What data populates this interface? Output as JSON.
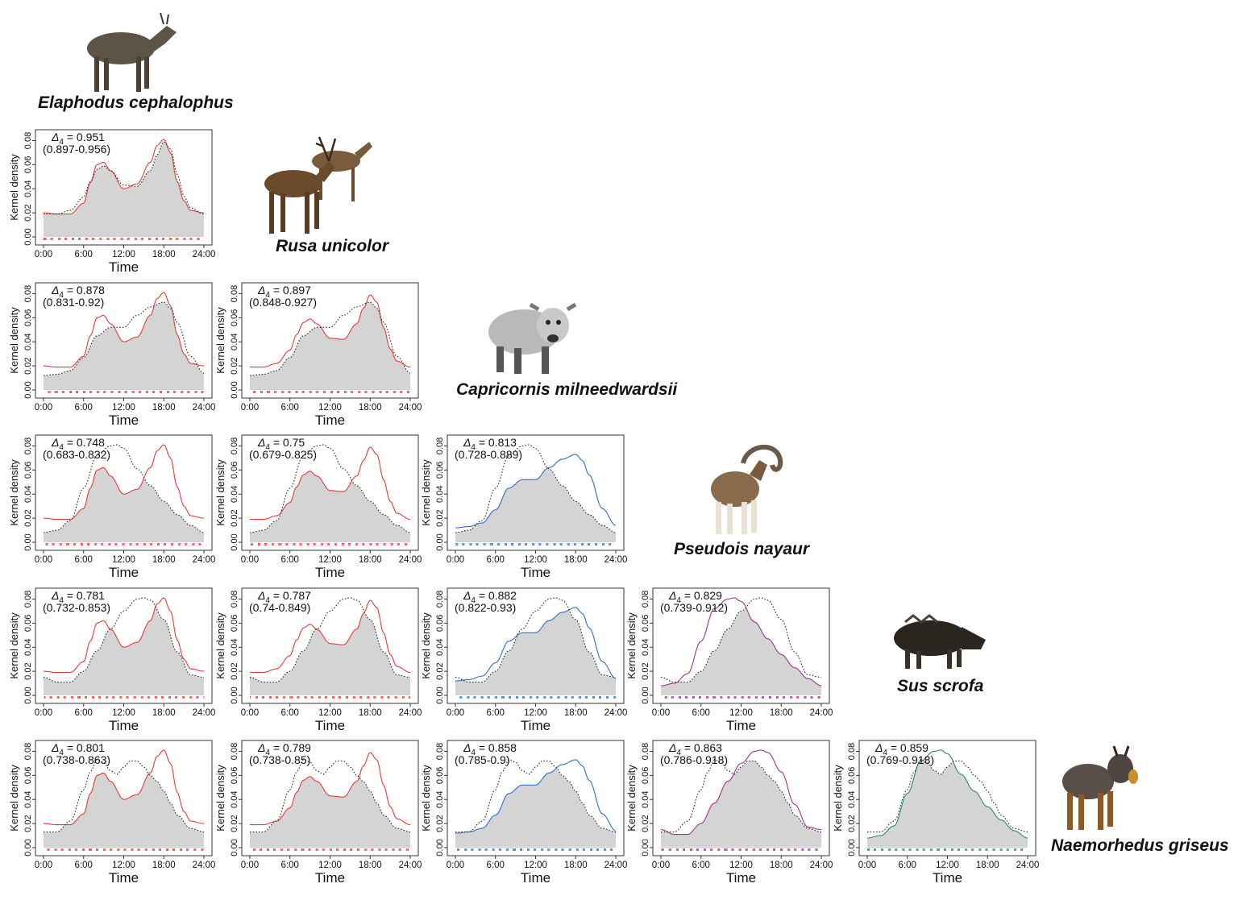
{
  "species": [
    "Elaphodus cephalophus",
    "Rusa unicolor",
    "Capricornis milneedwardsii",
    "Pseudois nayaur",
    "Sus scrofa",
    "Naemorhedus griseus"
  ],
  "species_colors": [
    "#e63a3a",
    "#2f6fc4",
    "#a0338f",
    "#2a8a5a"
  ],
  "chart_data": {
    "type": "area",
    "xlabel": "Time",
    "ylabel": "Kernel density",
    "x_ticks": [
      "0:00",
      "6:00",
      "12:00",
      "18:00",
      "24:00"
    ],
    "y_ticks": [
      "0.00",
      "0.02",
      "0.04",
      "0.06",
      "0.08"
    ],
    "xlim": [
      0,
      24
    ],
    "ylim": [
      0,
      0.085
    ],
    "overlap_symbol": "Δ",
    "overlap_subscript": "4",
    "panels": [
      {
        "pair": [
          "Rusa unicolor",
          "Elaphodus cephalophus"
        ],
        "delta": "0.951",
        "ci": "(0.897-0.956)"
      },
      {
        "pair": [
          "Capricornis milneedwardsii",
          "Elaphodus cephalophus"
        ],
        "delta": "0.878",
        "ci": "(0.831-0.92)"
      },
      {
        "pair": [
          "Capricornis milneedwardsii",
          "Rusa unicolor"
        ],
        "delta": "0.897",
        "ci": "(0.848-0.927)"
      },
      {
        "pair": [
          "Pseudois nayaur",
          "Elaphodus cephalophus"
        ],
        "delta": "0.748",
        "ci": "(0.683-0.832)"
      },
      {
        "pair": [
          "Pseudois nayaur",
          "Rusa unicolor"
        ],
        "delta": "0.75",
        "ci": "(0.679-0.825)"
      },
      {
        "pair": [
          "Pseudois nayaur",
          "Capricornis milneedwardsii"
        ],
        "delta": "0.813",
        "ci": "(0.728-0.889)"
      },
      {
        "pair": [
          "Sus scrofa",
          "Elaphodus cephalophus"
        ],
        "delta": "0.781",
        "ci": "(0.732-0.853)"
      },
      {
        "pair": [
          "Sus scrofa",
          "Rusa unicolor"
        ],
        "delta": "0.787",
        "ci": "(0.74-0.849)"
      },
      {
        "pair": [
          "Sus scrofa",
          "Capricornis milneedwardsii"
        ],
        "delta": "0.882",
        "ci": "(0.822-0.93)"
      },
      {
        "pair": [
          "Sus scrofa",
          "Pseudois nayaur"
        ],
        "delta": "0.829",
        "ci": "(0.739-0.912)"
      },
      {
        "pair": [
          "Naemorhedus griseus",
          "Elaphodus cephalophus"
        ],
        "delta": "0.801",
        "ci": "(0.738-0.863)"
      },
      {
        "pair": [
          "Naemorhedus griseus",
          "Rusa unicolor"
        ],
        "delta": "0.789",
        "ci": "(0.738-0.85)"
      },
      {
        "pair": [
          "Naemorhedus griseus",
          "Capricornis milneedwardsii"
        ],
        "delta": "0.858",
        "ci": "(0.785-0.9)"
      },
      {
        "pair": [
          "Naemorhedus griseus",
          "Sus scrofa"
        ],
        "delta": "0.863",
        "ci": "(0.786-0.918)"
      },
      {
        "pair": [
          "Naemorhedus griseus",
          "Pseudois nayaur"
        ],
        "delta": "0.859",
        "ci": "(0.769-0.918)"
      }
    ],
    "activity_curves": {
      "Elaphodus cephalophus": {
        "x": [
          0,
          2,
          4,
          6,
          7,
          8,
          9,
          10,
          12,
          14,
          16,
          17,
          18,
          19,
          20,
          21,
          22,
          24
        ],
        "y": [
          0.02,
          0.019,
          0.019,
          0.028,
          0.045,
          0.06,
          0.062,
          0.055,
          0.04,
          0.044,
          0.062,
          0.076,
          0.081,
          0.07,
          0.046,
          0.03,
          0.022,
          0.02
        ]
      },
      "Rusa unicolor": {
        "x": [
          0,
          2,
          4,
          6,
          7,
          8,
          9,
          10,
          12,
          14,
          16,
          17,
          18,
          19,
          20,
          21,
          22,
          24
        ],
        "y": [
          0.019,
          0.019,
          0.022,
          0.033,
          0.046,
          0.056,
          0.059,
          0.055,
          0.043,
          0.042,
          0.055,
          0.068,
          0.079,
          0.073,
          0.052,
          0.034,
          0.024,
          0.019
        ]
      },
      "Capricornis milneedwardsii": {
        "x": [
          0,
          2,
          4,
          6,
          8,
          10,
          12,
          14,
          16,
          18,
          19,
          20,
          22,
          24
        ],
        "y": [
          0.012,
          0.013,
          0.016,
          0.027,
          0.045,
          0.052,
          0.052,
          0.062,
          0.069,
          0.073,
          0.068,
          0.056,
          0.028,
          0.014
        ]
      },
      "Pseudois nayaur": {
        "x": [
          0,
          2,
          4,
          6,
          8,
          10,
          11,
          12,
          14,
          16,
          18,
          20,
          22,
          24
        ],
        "y": [
          0.008,
          0.01,
          0.018,
          0.045,
          0.072,
          0.08,
          0.081,
          0.078,
          0.061,
          0.047,
          0.034,
          0.023,
          0.014,
          0.008
        ]
      },
      "Sus scrofa": {
        "x": [
          0,
          2,
          4,
          6,
          8,
          10,
          12,
          14,
          15,
          16,
          18,
          20,
          22,
          24
        ],
        "y": [
          0.015,
          0.011,
          0.011,
          0.02,
          0.037,
          0.055,
          0.07,
          0.08,
          0.081,
          0.079,
          0.063,
          0.036,
          0.017,
          0.015
        ]
      },
      "Naemorhedus griseus": {
        "x": [
          0,
          2,
          4,
          6,
          7,
          8,
          9,
          10,
          11,
          12,
          13,
          14,
          15,
          16,
          17,
          18,
          19,
          20,
          22,
          24
        ],
        "y": [
          0.013,
          0.013,
          0.022,
          0.048,
          0.063,
          0.073,
          0.071,
          0.064,
          0.061,
          0.067,
          0.072,
          0.072,
          0.067,
          0.06,
          0.055,
          0.047,
          0.037,
          0.027,
          0.016,
          0.013
        ]
      }
    }
  }
}
